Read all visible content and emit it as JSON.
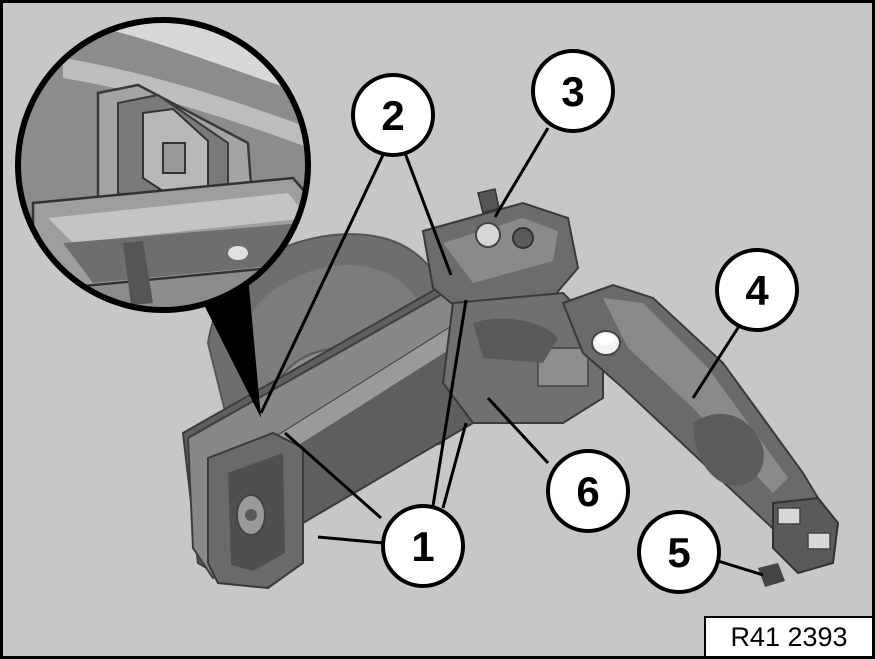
{
  "figure": {
    "reference_code": "R41 2393",
    "background_color": "#c7c7c7",
    "callouts": [
      {
        "id": "callout-1",
        "label": "1"
      },
      {
        "id": "callout-2",
        "label": "2"
      },
      {
        "id": "callout-3",
        "label": "3"
      },
      {
        "id": "callout-4",
        "label": "4"
      },
      {
        "id": "callout-5",
        "label": "5"
      },
      {
        "id": "callout-6",
        "label": "6"
      }
    ]
  }
}
